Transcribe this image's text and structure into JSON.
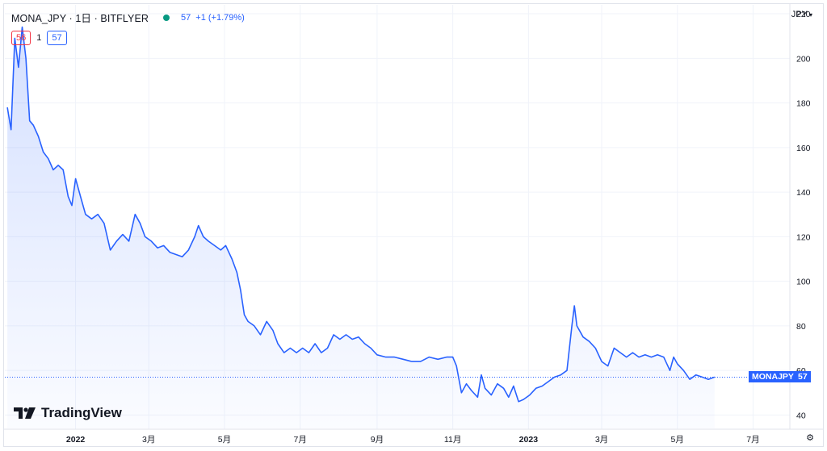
{
  "header": {
    "title": "MONA_JPY · 1日 · BITFLYER",
    "price": "57",
    "change": "+1 (+1.79%)"
  },
  "ohlc": {
    "bid": "56",
    "spread": "1",
    "ask": "57"
  },
  "currency": "JPY",
  "logo": "TradingView",
  "last_tag": {
    "symbol": "MONAJPY",
    "value": "57"
  },
  "colors": {
    "line": "#2962ff",
    "bid": "#f23645",
    "status": "#089981"
  },
  "chart_data": {
    "type": "area",
    "xlabel": "",
    "ylabel": "",
    "ylim": [
      34,
      224
    ],
    "yticks": [
      40,
      60,
      80,
      100,
      120,
      140,
      160,
      180,
      200,
      220
    ],
    "xlim": [
      "2021-11-05",
      "2023-07-30"
    ],
    "xticks": [
      {
        "date": "2022-01-01",
        "label": "2022"
      },
      {
        "date": "2022-03-01",
        "label": "3月"
      },
      {
        "date": "2022-05-01",
        "label": "5月"
      },
      {
        "date": "2022-07-01",
        "label": "7月"
      },
      {
        "date": "2022-09-01",
        "label": "9月"
      },
      {
        "date": "2022-11-01",
        "label": "11月"
      },
      {
        "date": "2023-01-01",
        "label": "2023"
      },
      {
        "date": "2023-03-01",
        "label": "3月"
      },
      {
        "date": "2023-05-01",
        "label": "5月"
      },
      {
        "date": "2023-07-01",
        "label": "7月"
      }
    ],
    "last_value": 57,
    "series": [
      {
        "points": [
          [
            "2021-11-07",
            178
          ],
          [
            "2021-11-10",
            168
          ],
          [
            "2021-11-13",
            209
          ],
          [
            "2021-11-16",
            196
          ],
          [
            "2021-11-19",
            214
          ],
          [
            "2021-11-22",
            200
          ],
          [
            "2021-11-25",
            172
          ],
          [
            "2021-11-28",
            170
          ],
          [
            "2021-12-02",
            165
          ],
          [
            "2021-12-06",
            158
          ],
          [
            "2021-12-10",
            155
          ],
          [
            "2021-12-14",
            150
          ],
          [
            "2021-12-18",
            152
          ],
          [
            "2021-12-22",
            150
          ],
          [
            "2021-12-26",
            138
          ],
          [
            "2021-12-29",
            134
          ],
          [
            "2022-01-01",
            146
          ],
          [
            "2022-01-05",
            138
          ],
          [
            "2022-01-09",
            130
          ],
          [
            "2022-01-14",
            128
          ],
          [
            "2022-01-19",
            130
          ],
          [
            "2022-01-24",
            126
          ],
          [
            "2022-01-29",
            114
          ],
          [
            "2022-02-03",
            118
          ],
          [
            "2022-02-08",
            121
          ],
          [
            "2022-02-13",
            118
          ],
          [
            "2022-02-18",
            130
          ],
          [
            "2022-02-22",
            126
          ],
          [
            "2022-02-26",
            120
          ],
          [
            "2022-03-03",
            118
          ],
          [
            "2022-03-08",
            115
          ],
          [
            "2022-03-13",
            116
          ],
          [
            "2022-03-18",
            113
          ],
          [
            "2022-03-23",
            112
          ],
          [
            "2022-03-28",
            111
          ],
          [
            "2022-04-02",
            114
          ],
          [
            "2022-04-07",
            120
          ],
          [
            "2022-04-10",
            125
          ],
          [
            "2022-04-14",
            120
          ],
          [
            "2022-04-18",
            118
          ],
          [
            "2022-04-23",
            116
          ],
          [
            "2022-04-28",
            114
          ],
          [
            "2022-05-02",
            116
          ],
          [
            "2022-05-07",
            110
          ],
          [
            "2022-05-11",
            104
          ],
          [
            "2022-05-14",
            96
          ],
          [
            "2022-05-17",
            85
          ],
          [
            "2022-05-20",
            82
          ],
          [
            "2022-05-25",
            80
          ],
          [
            "2022-05-30",
            76
          ],
          [
            "2022-06-04",
            82
          ],
          [
            "2022-06-09",
            78
          ],
          [
            "2022-06-13",
            72
          ],
          [
            "2022-06-18",
            68
          ],
          [
            "2022-06-23",
            70
          ],
          [
            "2022-06-28",
            68
          ],
          [
            "2022-07-03",
            70
          ],
          [
            "2022-07-08",
            68
          ],
          [
            "2022-07-13",
            72
          ],
          [
            "2022-07-18",
            68
          ],
          [
            "2022-07-23",
            70
          ],
          [
            "2022-07-28",
            76
          ],
          [
            "2022-08-02",
            74
          ],
          [
            "2022-08-07",
            76
          ],
          [
            "2022-08-12",
            74
          ],
          [
            "2022-08-17",
            75
          ],
          [
            "2022-08-22",
            72
          ],
          [
            "2022-08-27",
            70
          ],
          [
            "2022-09-01",
            67
          ],
          [
            "2022-09-08",
            66
          ],
          [
            "2022-09-15",
            66
          ],
          [
            "2022-09-22",
            65
          ],
          [
            "2022-09-29",
            64
          ],
          [
            "2022-10-06",
            64
          ],
          [
            "2022-10-13",
            66
          ],
          [
            "2022-10-20",
            65
          ],
          [
            "2022-10-27",
            66
          ],
          [
            "2022-11-01",
            66
          ],
          [
            "2022-11-04",
            62
          ],
          [
            "2022-11-08",
            50
          ],
          [
            "2022-11-12",
            54
          ],
          [
            "2022-11-16",
            51
          ],
          [
            "2022-11-21",
            48
          ],
          [
            "2022-11-24",
            58
          ],
          [
            "2022-11-27",
            52
          ],
          [
            "2022-12-02",
            49
          ],
          [
            "2022-12-07",
            54
          ],
          [
            "2022-12-12",
            52
          ],
          [
            "2022-12-16",
            48
          ],
          [
            "2022-12-20",
            53
          ],
          [
            "2022-12-24",
            46
          ],
          [
            "2022-12-28",
            47
          ],
          [
            "2023-01-02",
            49
          ],
          [
            "2023-01-07",
            52
          ],
          [
            "2023-01-12",
            53
          ],
          [
            "2023-01-17",
            55
          ],
          [
            "2023-01-22",
            57
          ],
          [
            "2023-01-27",
            58
          ],
          [
            "2023-02-01",
            60
          ],
          [
            "2023-02-05",
            80
          ],
          [
            "2023-02-07",
            89
          ],
          [
            "2023-02-09",
            80
          ],
          [
            "2023-02-14",
            75
          ],
          [
            "2023-02-19",
            73
          ],
          [
            "2023-02-24",
            70
          ],
          [
            "2023-03-01",
            64
          ],
          [
            "2023-03-06",
            62
          ],
          [
            "2023-03-11",
            70
          ],
          [
            "2023-03-16",
            68
          ],
          [
            "2023-03-21",
            66
          ],
          [
            "2023-03-26",
            68
          ],
          [
            "2023-03-31",
            66
          ],
          [
            "2023-04-05",
            67
          ],
          [
            "2023-04-10",
            66
          ],
          [
            "2023-04-15",
            67
          ],
          [
            "2023-04-20",
            66
          ],
          [
            "2023-04-25",
            60
          ],
          [
            "2023-04-28",
            66
          ],
          [
            "2023-05-01",
            63
          ],
          [
            "2023-05-06",
            60
          ],
          [
            "2023-05-11",
            56
          ],
          [
            "2023-05-16",
            58
          ],
          [
            "2023-05-21",
            57
          ],
          [
            "2023-05-26",
            56
          ],
          [
            "2023-05-31",
            57
          ]
        ]
      }
    ]
  }
}
